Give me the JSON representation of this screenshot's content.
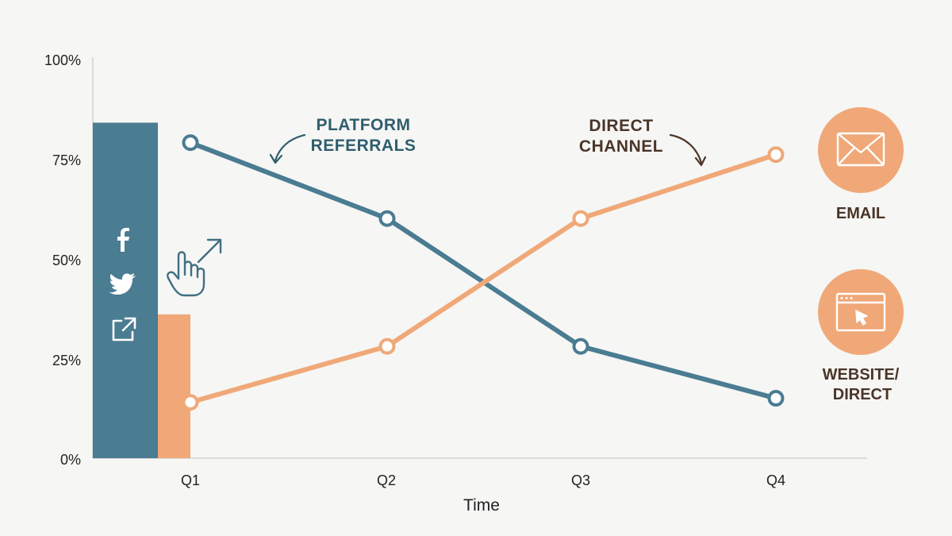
{
  "chart_data": {
    "type": "line",
    "categories": [
      "Q1",
      "Q2",
      "Q3",
      "Q4"
    ],
    "xlabel": "Time",
    "ylabel": "",
    "ylim": [
      0,
      100
    ],
    "yticks": [
      "0%",
      "25%",
      "50%",
      "75%",
      "100%"
    ],
    "series": [
      {
        "name": "PLATFORM REFERRALS",
        "values": [
          79,
          60,
          28,
          15
        ],
        "color": "#4a7c92"
      },
      {
        "name": "DIRECT CHANNEL",
        "values": [
          14,
          28,
          60,
          76
        ],
        "color": "#f0a878"
      }
    ],
    "bars": [
      {
        "value": 84,
        "color": "#4a7c92"
      },
      {
        "value": 36,
        "color": "#f0a878"
      }
    ],
    "grid": false
  },
  "callouts": {
    "platform": [
      "PLATFORM",
      "REFERRALS"
    ],
    "direct": [
      "DIRECT",
      "CHANNEL"
    ]
  },
  "side": {
    "email_label": "EMAIL",
    "website_label": [
      "WEBSITE/",
      "DIRECT"
    ]
  },
  "icons": [
    "facebook-icon",
    "twitter-icon",
    "external-link-icon",
    "pointer-hand-icon",
    "email-icon",
    "browser-window-icon"
  ],
  "colors": {
    "teal": "#4a7c92",
    "peach": "#f0a878",
    "callout_teal": "#2f5e6e",
    "callout_brown": "#4a3528"
  }
}
